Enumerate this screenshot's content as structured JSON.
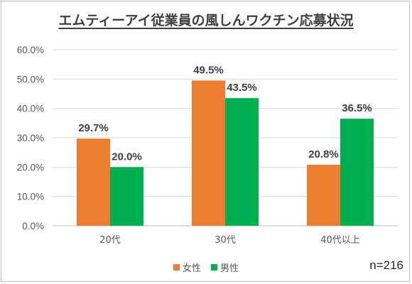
{
  "chart_data": {
    "type": "bar",
    "title": "エムティーアイ従業員の風しんワクチン応募状況",
    "categories": [
      "20代",
      "30代",
      "40代以上"
    ],
    "series": [
      {
        "name": "女性",
        "values": [
          29.7,
          49.5,
          20.8
        ],
        "labels": [
          "29.7%",
          "49.5%",
          "20.8%"
        ],
        "color": "#ED7D31"
      },
      {
        "name": "男性",
        "values": [
          20.0,
          43.5,
          36.5
        ],
        "labels": [
          "20.0%",
          "43.5%",
          "36.5%"
        ],
        "color": "#00B050"
      }
    ],
    "y_ticks": [
      "0.0%",
      "10.0%",
      "20.0%",
      "30.0%",
      "40.0%",
      "50.0%",
      "60.0%"
    ],
    "ylim": [
      0,
      60
    ],
    "grid": true,
    "legend_position": "bottom",
    "annotation": "n=216"
  }
}
